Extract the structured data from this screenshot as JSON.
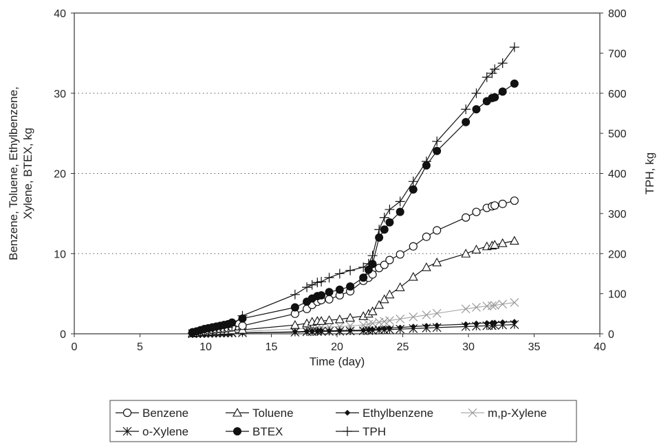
{
  "chart_data": {
    "type": "line",
    "xlabel": "Time (day)",
    "ylabel": "Benzene, Toluene, Ethylbenzene, Xylene, BTEX, kg",
    "y2label": "TPH, kg",
    "xlim": [
      0,
      40
    ],
    "ylim": [
      0,
      40
    ],
    "y2lim": [
      0,
      800
    ],
    "x_ticks": [
      "0",
      "5",
      "10",
      "15",
      "20",
      "25",
      "30",
      "35",
      "40"
    ],
    "y_ticks": [
      "0",
      "10",
      "20",
      "30",
      "40"
    ],
    "y2_ticks": [
      "0",
      "100",
      "200",
      "300",
      "400",
      "500",
      "600",
      "700",
      "800"
    ],
    "grid": "horizontal dotted at y = 10, 20, 30",
    "legend_position": "bottom",
    "x": [
      9.0,
      9.3,
      9.6,
      9.9,
      10.2,
      10.5,
      10.8,
      11.1,
      11.4,
      11.7,
      12.0,
      12.8,
      16.8,
      17.7,
      18.1,
      18.5,
      18.8,
      19.4,
      20.2,
      21.0,
      22.0,
      22.4,
      22.7,
      23.2,
      23.6,
      24.0,
      24.8,
      25.8,
      26.8,
      27.6,
      29.8,
      30.6,
      31.4,
      31.8,
      32.0,
      32.6,
      33.5
    ],
    "series": [
      {
        "name": "Benzene",
        "marker": "open-circle",
        "axis": "left",
        "values": [
          0.1,
          0.15,
          0.25,
          0.35,
          0.45,
          0.5,
          0.55,
          0.6,
          0.65,
          0.7,
          0.8,
          1.0,
          2.5,
          3.1,
          3.6,
          4.0,
          4.2,
          4.3,
          4.8,
          5.3,
          6.6,
          7.0,
          7.4,
          8.2,
          8.6,
          9.2,
          9.9,
          10.9,
          12.1,
          12.9,
          14.5,
          15.2,
          15.7,
          15.9,
          16.0,
          16.2,
          16.6
        ]
      },
      {
        "name": "Toluene",
        "marker": "open-triangle",
        "axis": "left",
        "values": [
          0.05,
          0.1,
          0.15,
          0.2,
          0.25,
          0.3,
          0.35,
          0.35,
          0.4,
          0.4,
          0.45,
          0.5,
          1.1,
          1.3,
          1.5,
          1.6,
          1.6,
          1.7,
          1.8,
          2.0,
          2.2,
          2.5,
          2.8,
          3.6,
          4.3,
          4.9,
          5.8,
          7.1,
          8.3,
          8.9,
          10.0,
          10.5,
          10.9,
          11.0,
          11.1,
          11.3,
          11.6
        ]
      },
      {
        "name": "Ethylbenzene",
        "marker": "small-diamond",
        "axis": "left",
        "values": [
          0.0,
          0.01,
          0.02,
          0.03,
          0.04,
          0.05,
          0.06,
          0.07,
          0.08,
          0.09,
          0.1,
          0.12,
          0.25,
          0.3,
          0.32,
          0.34,
          0.35,
          0.37,
          0.4,
          0.42,
          0.45,
          0.5,
          0.55,
          0.6,
          0.65,
          0.7,
          0.78,
          0.9,
          1.0,
          1.05,
          1.2,
          1.3,
          1.35,
          1.38,
          1.4,
          1.45,
          1.5
        ]
      },
      {
        "name": "m,p-Xylene",
        "marker": "x",
        "axis": "left",
        "values": [
          0.02,
          0.04,
          0.06,
          0.08,
          0.1,
          0.12,
          0.14,
          0.16,
          0.18,
          0.2,
          0.22,
          0.3,
          0.6,
          0.7,
          0.75,
          0.8,
          0.82,
          0.85,
          0.9,
          1.0,
          1.1,
          1.2,
          1.3,
          1.45,
          1.55,
          1.65,
          1.85,
          2.1,
          2.35,
          2.55,
          3.1,
          3.3,
          3.45,
          3.5,
          3.55,
          3.7,
          3.9
        ]
      },
      {
        "name": "o-Xylene",
        "marker": "asterisk",
        "axis": "left",
        "values": [
          0.01,
          0.02,
          0.03,
          0.04,
          0.05,
          0.06,
          0.07,
          0.08,
          0.09,
          0.1,
          0.1,
          0.12,
          0.2,
          0.25,
          0.27,
          0.28,
          0.3,
          0.3,
          0.32,
          0.35,
          0.38,
          0.4,
          0.42,
          0.45,
          0.48,
          0.52,
          0.58,
          0.65,
          0.72,
          0.78,
          0.9,
          0.95,
          1.0,
          1.02,
          1.05,
          1.1,
          1.15
        ]
      },
      {
        "name": "BTEX",
        "marker": "filled-circle",
        "axis": "left",
        "values": [
          0.2,
          0.3,
          0.45,
          0.6,
          0.7,
          0.8,
          0.9,
          1.0,
          1.1,
          1.2,
          1.4,
          1.9,
          3.3,
          4.0,
          4.4,
          4.7,
          4.8,
          5.2,
          5.5,
          5.9,
          7.0,
          8.0,
          8.7,
          12.0,
          13.0,
          13.9,
          15.2,
          18.0,
          21.0,
          22.8,
          26.4,
          28.0,
          29.0,
          29.4,
          29.5,
          30.2,
          31.2
        ]
      },
      {
        "name": "TPH",
        "marker": "plus",
        "axis": "right",
        "values": [
          2,
          4,
          7,
          9,
          11,
          12,
          13,
          14,
          15,
          16,
          20,
          45,
          98,
          116,
          122,
          128,
          130,
          140,
          150,
          158,
          166,
          175,
          195,
          260,
          290,
          310,
          330,
          380,
          430,
          480,
          560,
          600,
          640,
          650,
          660,
          675,
          715
        ]
      }
    ]
  }
}
